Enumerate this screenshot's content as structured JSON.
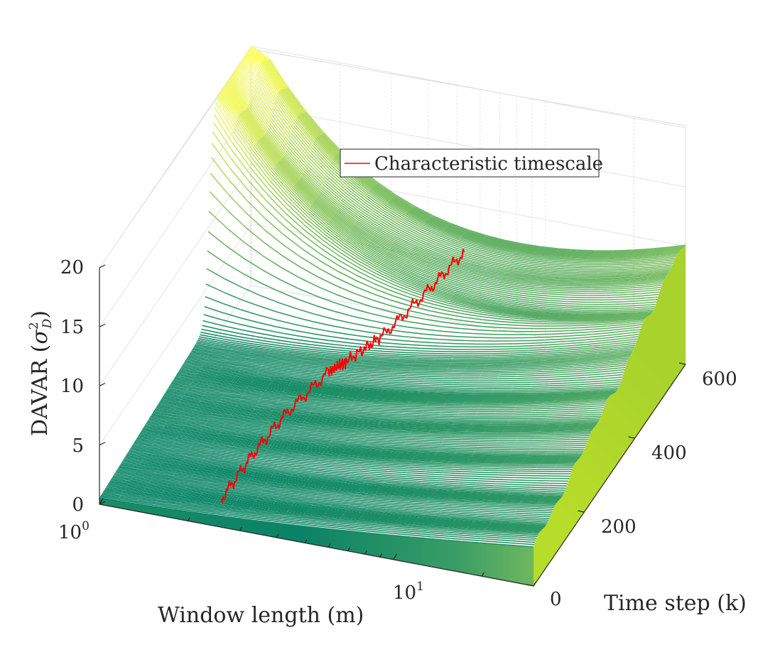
{
  "chart_data": {
    "type": "surface-3d",
    "title": "",
    "xlabel": "Window length (m)",
    "ylabel": "Time step (k)",
    "zlabel": "DAVAR (σ²_D)",
    "zlabel_parts": {
      "main": "DAVAR (",
      "sigma": "σ",
      "sup": "2",
      "sub": "D",
      "close": ")"
    },
    "x_scale": "log",
    "xlim": [
      1,
      30
    ],
    "ylim": [
      0,
      600
    ],
    "zlim": [
      0,
      20
    ],
    "x_ticks": [
      {
        "base": "10",
        "exp": "0"
      },
      {
        "base": "10",
        "exp": "1"
      }
    ],
    "y_ticks": [
      "0",
      "200",
      "400",
      "600"
    ],
    "z_ticks": [
      "0",
      "5",
      "10",
      "15",
      "20"
    ],
    "grid": true,
    "colormap": "summer",
    "colormap_colors": [
      "#008066",
      "#ffff66"
    ],
    "legend": {
      "label": "Characteristic timescale",
      "color": "#ff0000",
      "placement": "top-center"
    },
    "characteristic_timescale": {
      "color": "#ff0000",
      "approx_path": [
        {
          "k": 0,
          "m": 2.6,
          "davar": 2.4
        },
        {
          "k": 100,
          "m": 2.7,
          "davar": 3.0
        },
        {
          "k": 200,
          "m": 2.9,
          "davar": 3.6
        },
        {
          "k": 300,
          "m": 3.3,
          "davar": 4.2
        },
        {
          "k": 330,
          "m": 3.6,
          "davar": 4.4
        },
        {
          "k": 400,
          "m": 4.2,
          "davar": 4.8
        },
        {
          "k": 500,
          "m": 4.8,
          "davar": 5.5
        },
        {
          "k": 600,
          "m": 5.3,
          "davar": 6.0
        }
      ]
    }
  }
}
